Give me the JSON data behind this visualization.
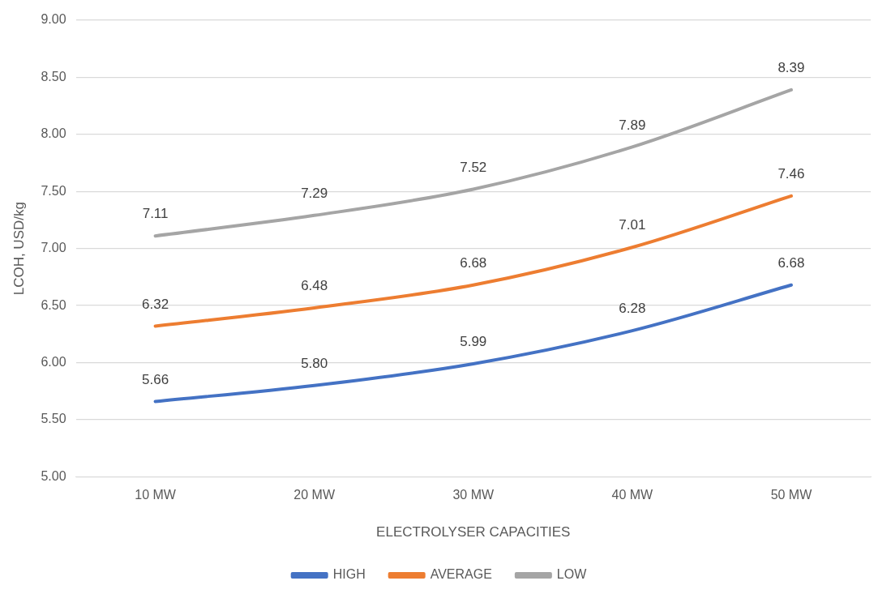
{
  "chart_data": {
    "type": "line",
    "xlabel": "ELECTROLYSER CAPACITIES",
    "ylabel": "LCOH, USD/kg",
    "categories": [
      "10 MW",
      "20 MW",
      "30 MW",
      "40 MW",
      "50 MW"
    ],
    "series": [
      {
        "name": "HIGH",
        "color": "#4472c4",
        "values": [
          5.66,
          5.8,
          5.99,
          6.28,
          6.68
        ],
        "value_labels": [
          "5.66",
          "5.80",
          "5.99",
          "6.28",
          "6.68"
        ]
      },
      {
        "name": "AVERAGE",
        "color": "#ed7d31",
        "values": [
          6.32,
          6.48,
          6.68,
          7.01,
          7.46
        ],
        "value_labels": [
          "6.32",
          "6.48",
          "6.68",
          "7.01",
          "7.46"
        ]
      },
      {
        "name": "LOW",
        "color": "#a5a5a5",
        "values": [
          7.11,
          7.29,
          7.52,
          7.89,
          8.39
        ],
        "value_labels": [
          "7.11",
          "7.29",
          "7.52",
          "7.89",
          "8.39"
        ]
      }
    ],
    "ylim": [
      5,
      9
    ],
    "yticks": [
      {
        "value": 5,
        "label": "5.00"
      },
      {
        "value": 5.5,
        "label": "5.50"
      },
      {
        "value": 6,
        "label": "6.00"
      },
      {
        "value": 6.5,
        "label": "6.50"
      },
      {
        "value": 7,
        "label": "7.00"
      },
      {
        "value": 7.5,
        "label": "7.50"
      },
      {
        "value": 8,
        "label": "8.00"
      },
      {
        "value": 8.5,
        "label": "8.50"
      },
      {
        "value": 9,
        "label": "9.00"
      }
    ],
    "grid": "y",
    "legend": "bottom",
    "marker": "none",
    "line_style": "solid"
  }
}
